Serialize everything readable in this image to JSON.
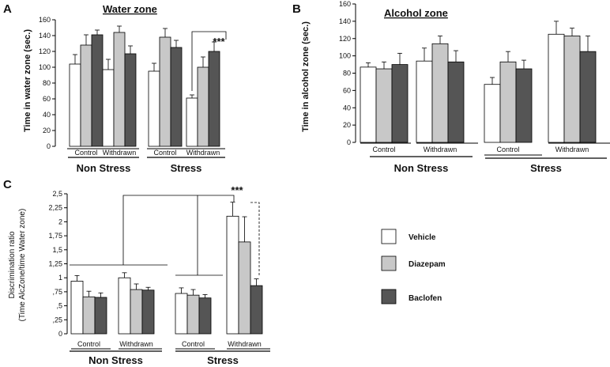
{
  "colors": {
    "vehicle": "#ffffff",
    "diazepam": "#c8c8c8",
    "baclofen": "#555555",
    "axis": "#000000"
  },
  "legend": [
    "Vehicle",
    "Diazepam",
    "Baclofen"
  ],
  "chart_data": [
    {
      "panel": "A",
      "type": "bar",
      "title": "Water zone",
      "ylabel": "Time in water zone (sec.)",
      "ylim": [
        0,
        160
      ],
      "yticks": [
        "0",
        "20",
        "40",
        "60",
        "80",
        "100",
        "120",
        "140",
        "160"
      ],
      "categories": [
        "Control",
        "Withdrawn",
        "Control",
        "Withdrawn"
      ],
      "groups": [
        "Non Stress",
        "Stress"
      ],
      "series": [
        {
          "name": "Vehicle",
          "values": [
            104,
            97,
            95,
            61
          ],
          "errors": [
            12,
            13,
            10,
            4
          ]
        },
        {
          "name": "Diazepam",
          "values": [
            128,
            144,
            138,
            100
          ],
          "errors": [
            13,
            8,
            11,
            13
          ]
        },
        {
          "name": "Baclofen",
          "values": [
            141,
            117,
            125,
            120
          ],
          "errors": [
            6,
            10,
            9,
            12
          ]
        }
      ],
      "annotations": [
        "***"
      ]
    },
    {
      "panel": "B",
      "type": "bar",
      "title": "Alcohol zone",
      "ylabel": "Time in alcohol zone (sec.)",
      "ylim": [
        0,
        160
      ],
      "yticks": [
        "0",
        "20",
        "40",
        "60",
        "80",
        "100",
        "120",
        "140",
        "160"
      ],
      "categories": [
        "Control",
        "Withdrawn",
        "Control",
        "Withdrawn"
      ],
      "groups": [
        "Non Stress",
        "Stress"
      ],
      "series": [
        {
          "name": "Vehicle",
          "values": [
            87,
            94,
            67,
            125
          ],
          "errors": [
            5,
            15,
            8,
            15
          ]
        },
        {
          "name": "Diazepam",
          "values": [
            85,
            114,
            93,
            123
          ],
          "errors": [
            8,
            9,
            12,
            9
          ]
        },
        {
          "name": "Baclofen",
          "values": [
            90,
            93,
            85,
            105
          ],
          "errors": [
            13,
            13,
            10,
            18
          ]
        }
      ],
      "annotations": []
    },
    {
      "panel": "C",
      "type": "bar",
      "title": "",
      "ylabel": "Discrimination ratio",
      "ylabel2": "(Time AlcZone/time Water zone)",
      "ylim": [
        0,
        2.5
      ],
      "yticks": [
        "0",
        ",25",
        ",5",
        ",75",
        "1",
        "1,25",
        "1,5",
        "1,75",
        "2",
        "2,25",
        "2,5"
      ],
      "categories": [
        "Control",
        "Withdrawn",
        "Control",
        "Withdrawn"
      ],
      "groups": [
        "Non Stress",
        "Stress"
      ],
      "series": [
        {
          "name": "Vehicle",
          "values": [
            0.94,
            1.0,
            0.72,
            2.1
          ],
          "errors": [
            0.1,
            0.09,
            0.1,
            0.25
          ]
        },
        {
          "name": "Diazepam",
          "values": [
            0.66,
            0.79,
            0.69,
            1.64
          ],
          "errors": [
            0.1,
            0.1,
            0.1,
            0.45
          ]
        },
        {
          "name": "Baclofen",
          "values": [
            0.65,
            0.78,
            0.64,
            0.86
          ],
          "errors": [
            0.08,
            0.05,
            0.06,
            0.12
          ]
        }
      ],
      "annotations": [
        "***"
      ]
    }
  ]
}
